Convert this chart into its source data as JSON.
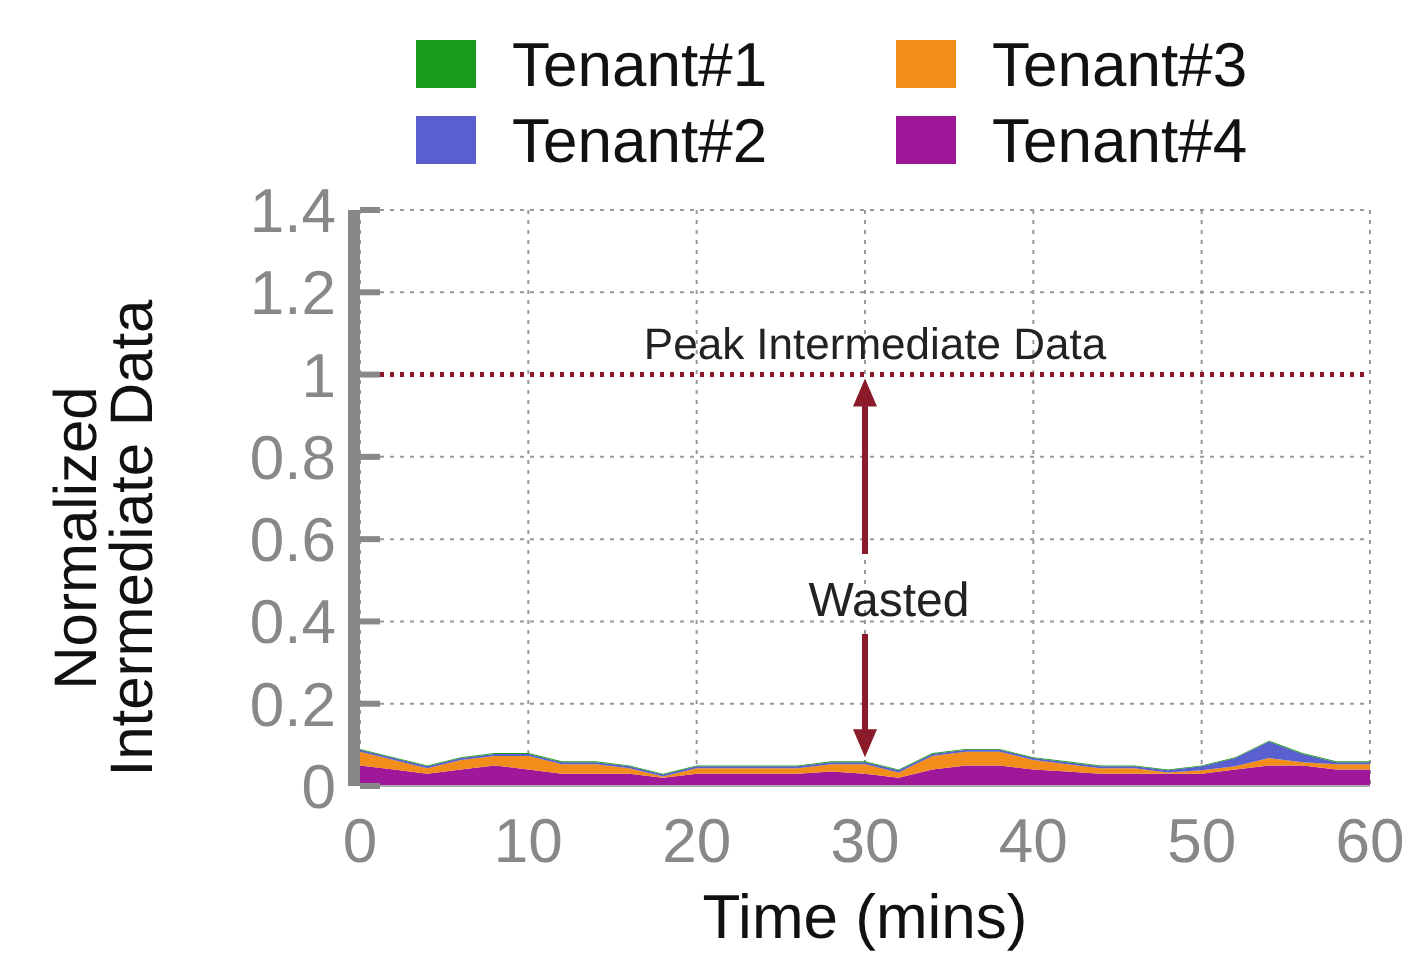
{
  "chart_data": {
    "type": "area",
    "stacked": true,
    "xlabel": "Time (mins)",
    "ylabel": "Normalized\nIntermediate Data",
    "x": [
      0,
      2,
      4,
      6,
      8,
      10,
      12,
      14,
      16,
      18,
      20,
      22,
      24,
      26,
      28,
      30,
      32,
      34,
      36,
      38,
      40,
      42,
      44,
      46,
      48,
      50,
      52,
      54,
      56,
      58,
      60
    ],
    "series": [
      {
        "name": "Tenant#4",
        "color": "#a0189a",
        "values": [
          0.05,
          0.04,
          0.03,
          0.04,
          0.05,
          0.04,
          0.03,
          0.03,
          0.03,
          0.02,
          0.03,
          0.03,
          0.03,
          0.03,
          0.035,
          0.03,
          0.02,
          0.04,
          0.05,
          0.05,
          0.04,
          0.035,
          0.03,
          0.03,
          0.03,
          0.03,
          0.04,
          0.05,
          0.05,
          0.04,
          0.04
        ]
      },
      {
        "name": "Tenant#3",
        "color": "#f28c1a",
        "values": [
          0.033,
          0.023,
          0.013,
          0.023,
          0.023,
          0.033,
          0.023,
          0.023,
          0.013,
          0.003,
          0.013,
          0.013,
          0.013,
          0.013,
          0.018,
          0.023,
          0.013,
          0.033,
          0.033,
          0.033,
          0.023,
          0.018,
          0.013,
          0.013,
          0.003,
          0.008,
          0.008,
          0.018,
          0.008,
          0.013,
          0.013
        ]
      },
      {
        "name": "Tenant#2",
        "color": "#5a5fcf",
        "values": [
          0.005,
          0.005,
          0.005,
          0.005,
          0.005,
          0.005,
          0.005,
          0.005,
          0.005,
          0.005,
          0.005,
          0.005,
          0.005,
          0.005,
          0.005,
          0.005,
          0.005,
          0.005,
          0.005,
          0.005,
          0.005,
          0.005,
          0.005,
          0.005,
          0.005,
          0.01,
          0.02,
          0.04,
          0.02,
          0.005,
          0.005
        ]
      },
      {
        "name": "Tenant#1",
        "color": "#1a9a1a",
        "values": [
          0.002,
          0.002,
          0.002,
          0.002,
          0.002,
          0.002,
          0.002,
          0.002,
          0.002,
          0.002,
          0.002,
          0.002,
          0.002,
          0.002,
          0.002,
          0.002,
          0.002,
          0.002,
          0.002,
          0.002,
          0.002,
          0.002,
          0.002,
          0.002,
          0.002,
          0.002,
          0.002,
          0.002,
          0.002,
          0.002,
          0.002
        ]
      }
    ],
    "xlim": [
      0,
      60
    ],
    "xticks": [
      0,
      10,
      20,
      30,
      40,
      50,
      60
    ],
    "ylim": [
      0,
      1.4
    ],
    "yticks": [
      0,
      0.2,
      0.4,
      0.6,
      0.8,
      1,
      1.2,
      1.4
    ],
    "ref_lines": [
      {
        "axis": "y",
        "value": 1,
        "label": "Peak Intermediate Data",
        "color": "#8b1a2a",
        "line_style": "dotted"
      }
    ],
    "annotations": [
      "Wasted"
    ],
    "grid": true,
    "legend": "top"
  }
}
